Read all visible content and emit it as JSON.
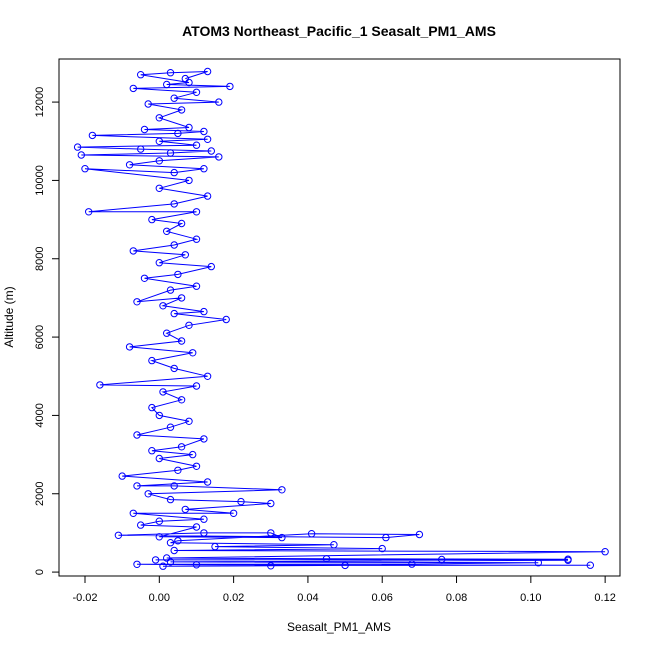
{
  "chart_data": {
    "type": "line",
    "title": "ATOM3 Northeast_Pacific_1 Seasalt_PM1_AMS",
    "xlabel": "Seasalt_PM1_AMS",
    "ylabel": "Altitude (m)",
    "xlim": [
      -0.027,
      0.124
    ],
    "ylim": [
      -100,
      13100
    ],
    "xticks": [
      -0.02,
      0.0,
      0.02,
      0.04,
      0.06,
      0.08,
      0.1,
      0.12
    ],
    "xtick_labels": [
      "-0.02",
      "0.00",
      "0.02",
      "0.04",
      "0.06",
      "0.08",
      "0.10",
      "0.12"
    ],
    "yticks": [
      0,
      2000,
      4000,
      6000,
      8000,
      10000,
      12000
    ],
    "ytick_labels": [
      "0",
      "2000",
      "4000",
      "6000",
      "8000",
      "10000",
      "12000"
    ],
    "grid": false,
    "series": [
      {
        "color": "#0000ff",
        "marker": "open-circle",
        "points": [
          [
            0.001,
            150
          ],
          [
            0.03,
            160
          ],
          [
            0.05,
            170
          ],
          [
            0.116,
            175
          ],
          [
            0.01,
            185
          ],
          [
            -0.006,
            200
          ],
          [
            0.068,
            205
          ],
          [
            0.102,
            240
          ],
          [
            0.003,
            260
          ],
          [
            0.11,
            300
          ],
          [
            0.076,
            320
          ],
          [
            -0.001,
            310
          ],
          [
            0.11,
            330
          ],
          [
            0.045,
            340
          ],
          [
            0.002,
            360
          ],
          [
            0.12,
            520
          ],
          [
            0.004,
            550
          ],
          [
            0.06,
            600
          ],
          [
            0.015,
            650
          ],
          [
            0.047,
            700
          ],
          [
            0.003,
            750
          ],
          [
            0.005,
            800
          ],
          [
            0.041,
            980
          ],
          [
            0.07,
            960
          ],
          [
            0.061,
            880
          ],
          [
            -0.011,
            940
          ],
          [
            0.012,
            1000
          ],
          [
            0.03,
            1000
          ],
          [
            0.033,
            880
          ],
          [
            0.0,
            900
          ],
          [
            0.01,
            1150
          ],
          [
            -0.005,
            1200
          ],
          [
            0.0,
            1300
          ],
          [
            0.012,
            1350
          ],
          [
            -0.007,
            1500
          ],
          [
            0.02,
            1500
          ],
          [
            0.007,
            1600
          ],
          [
            0.03,
            1750
          ],
          [
            0.022,
            1800
          ],
          [
            0.003,
            1850
          ],
          [
            -0.003,
            2000
          ],
          [
            0.033,
            2100
          ],
          [
            0.004,
            2200
          ],
          [
            -0.006,
            2200
          ],
          [
            0.013,
            2300
          ],
          [
            -0.01,
            2450
          ],
          [
            0.005,
            2600
          ],
          [
            0.01,
            2700
          ],
          [
            0.0,
            2900
          ],
          [
            0.009,
            3000
          ],
          [
            -0.002,
            3100
          ],
          [
            0.006,
            3200
          ],
          [
            0.012,
            3400
          ],
          [
            -0.006,
            3500
          ],
          [
            0.003,
            3700
          ],
          [
            0.008,
            3850
          ],
          [
            0.0,
            4000
          ],
          [
            -0.002,
            4200
          ],
          [
            0.006,
            4400
          ],
          [
            0.001,
            4600
          ],
          [
            0.01,
            4750
          ],
          [
            -0.016,
            4780
          ],
          [
            0.013,
            5000
          ],
          [
            0.004,
            5200
          ],
          [
            -0.002,
            5400
          ],
          [
            0.009,
            5600
          ],
          [
            -0.008,
            5750
          ],
          [
            0.006,
            5900
          ],
          [
            0.002,
            6100
          ],
          [
            0.008,
            6300
          ],
          [
            0.018,
            6450
          ],
          [
            0.004,
            6600
          ],
          [
            0.012,
            6650
          ],
          [
            0.001,
            6800
          ],
          [
            0.006,
            7000
          ],
          [
            -0.006,
            6900
          ],
          [
            0.003,
            7200
          ],
          [
            0.01,
            7300
          ],
          [
            -0.004,
            7500
          ],
          [
            0.005,
            7600
          ],
          [
            0.014,
            7800
          ],
          [
            0.0,
            7900
          ],
          [
            0.007,
            8100
          ],
          [
            -0.007,
            8200
          ],
          [
            0.004,
            8350
          ],
          [
            0.01,
            8500
          ],
          [
            0.002,
            8700
          ],
          [
            0.006,
            8900
          ],
          [
            -0.002,
            9000
          ],
          [
            0.01,
            9200
          ],
          [
            -0.019,
            9200
          ],
          [
            0.004,
            9400
          ],
          [
            0.013,
            9600
          ],
          [
            0.0,
            9800
          ],
          [
            0.008,
            10000
          ],
          [
            -0.02,
            10300
          ],
          [
            0.004,
            10200
          ],
          [
            0.012,
            10300
          ],
          [
            -0.008,
            10400
          ],
          [
            0.0,
            10500
          ],
          [
            0.016,
            10600
          ],
          [
            -0.021,
            10650
          ],
          [
            0.003,
            10700
          ],
          [
            0.014,
            10750
          ],
          [
            -0.005,
            10800
          ],
          [
            -0.022,
            10850
          ],
          [
            0.01,
            10900
          ],
          [
            0.0,
            11000
          ],
          [
            0.013,
            11050
          ],
          [
            -0.018,
            11150
          ],
          [
            0.005,
            11200
          ],
          [
            0.012,
            11250
          ],
          [
            -0.004,
            11300
          ],
          [
            0.008,
            11350
          ],
          [
            0.0,
            11600
          ],
          [
            0.006,
            11800
          ],
          [
            -0.003,
            11950
          ],
          [
            0.016,
            12000
          ],
          [
            0.004,
            12100
          ],
          [
            0.01,
            12250
          ],
          [
            -0.007,
            12350
          ],
          [
            0.019,
            12400
          ],
          [
            0.002,
            12450
          ],
          [
            0.008,
            12500
          ],
          [
            -0.005,
            12700
          ],
          [
            0.003,
            12750
          ],
          [
            0.013,
            12780
          ],
          [
            0.007,
            12600
          ]
        ]
      }
    ]
  }
}
